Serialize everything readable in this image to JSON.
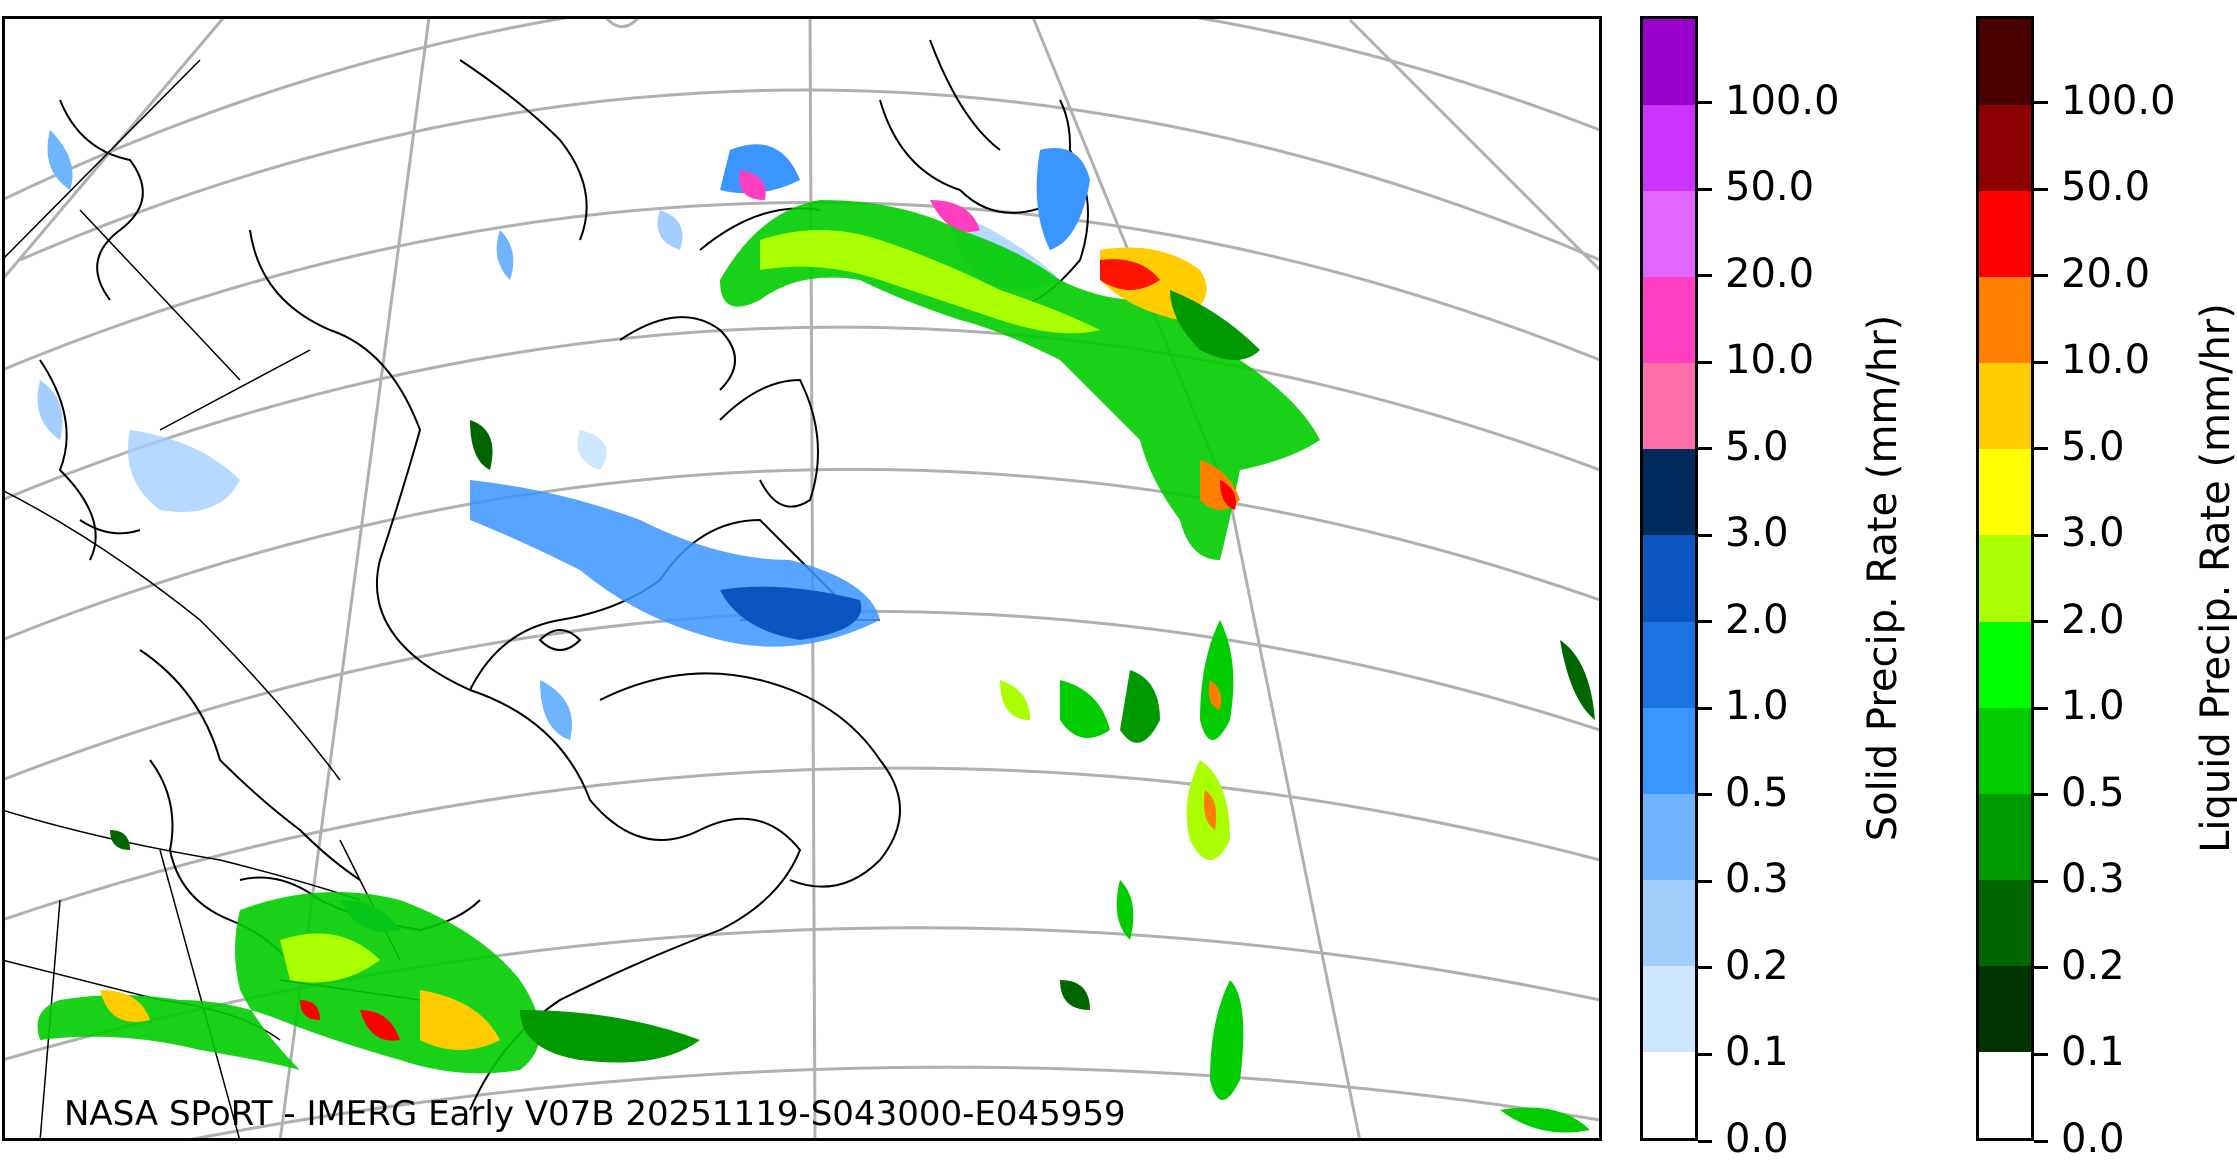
{
  "credit": "NASA SPoRT - IMERG Early V07B 20251119-S043000-E045959",
  "colorbars": {
    "solid": {
      "title": "Solid Precip. Rate (mm/hr)",
      "ticks": [
        "0.0",
        "0.1",
        "0.2",
        "0.3",
        "0.5",
        "1.0",
        "2.0",
        "3.0",
        "5.0",
        "10.0",
        "20.0",
        "50.0",
        "100.0"
      ],
      "colors": [
        "#ffffff",
        "#cfe6ff",
        "#a3cfff",
        "#70b3ff",
        "#3a95ff",
        "#1a73e0",
        "#0a55c0",
        "#002a5c",
        "#ff70a8",
        "#ff3fc0",
        "#e066ff",
        "#cc33ff",
        "#9900cc"
      ]
    },
    "liquid": {
      "title": "Liquid Precip. Rate (mm/hr)",
      "ticks": [
        "0.0",
        "0.1",
        "0.2",
        "0.3",
        "0.5",
        "1.0",
        "2.0",
        "3.0",
        "5.0",
        "10.0",
        "20.0",
        "50.0",
        "100.0"
      ],
      "colors": [
        "#ffffff",
        "#003300",
        "#006600",
        "#009900",
        "#00cc00",
        "#00ff00",
        "#aaff00",
        "#ffff00",
        "#ffcc00",
        "#ff8000",
        "#ff0000",
        "#8b0000",
        "#4a0000"
      ]
    }
  }
}
